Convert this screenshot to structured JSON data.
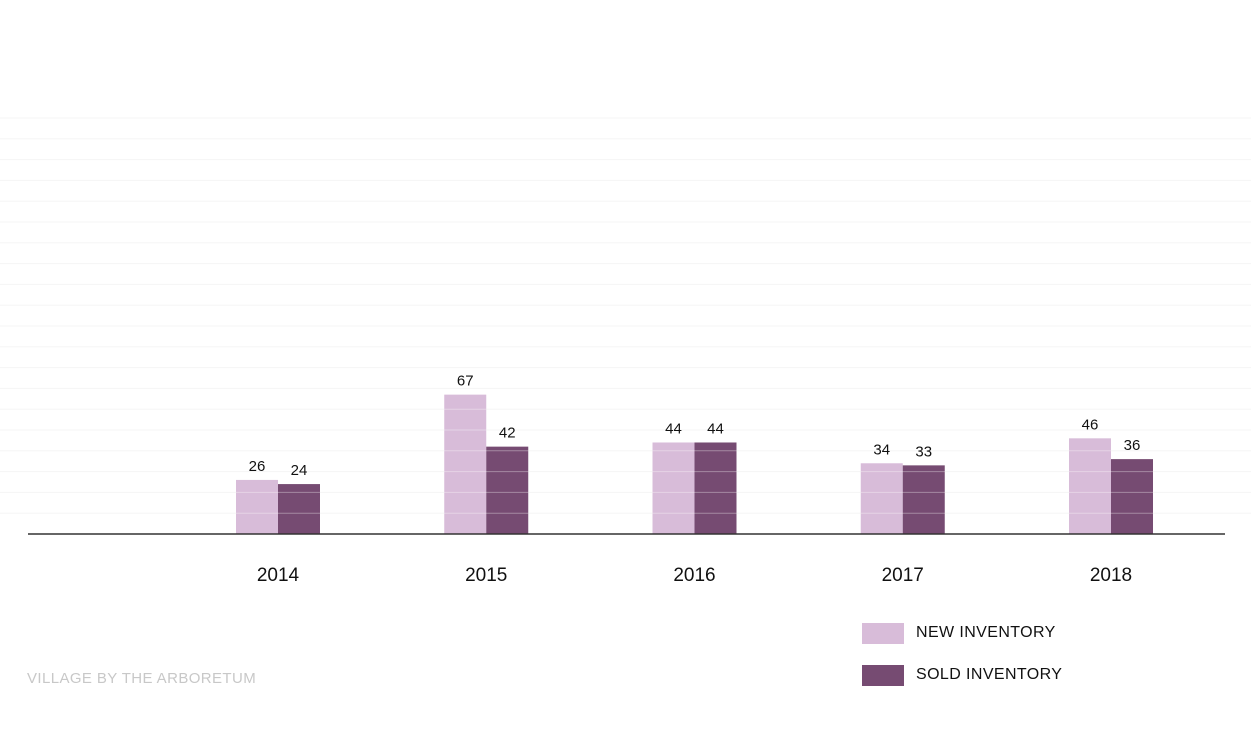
{
  "chart_data": {
    "type": "bar",
    "categories": [
      "2014",
      "2015",
      "2016",
      "2017",
      "2018"
    ],
    "series": [
      {
        "name": "NEW INVENTORY",
        "values": [
          26,
          67,
          44,
          34,
          46
        ],
        "color": "#d8bcd9"
      },
      {
        "name": "SOLD INVENTORY",
        "values": [
          24,
          42,
          44,
          33,
          36
        ],
        "color": "#764b72"
      }
    ],
    "ylim": [
      0,
      200
    ],
    "grid": true,
    "legend_position": "bottom-right"
  },
  "colors": {
    "axis": "#333333",
    "grid": "#f2f2f2",
    "label": "#111111",
    "footer": "#c8c8c8"
  },
  "footer": {
    "text": "VILLAGE BY THE ARBORETUM"
  }
}
